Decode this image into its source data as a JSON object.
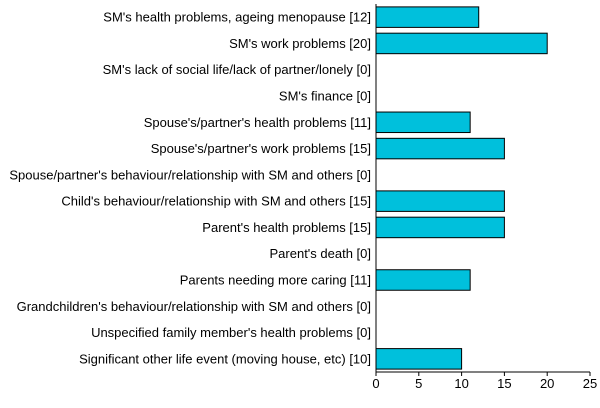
{
  "chart_data": {
    "type": "bar",
    "orientation": "horizontal",
    "title": "",
    "xlabel": "",
    "ylabel": "",
    "xlim": [
      0,
      25
    ],
    "xticks": [
      0,
      5,
      10,
      15,
      20,
      25
    ],
    "grid": false,
    "legend": "none",
    "bar_color": "#00c0dc",
    "categories": [
      "SM's health problems, ageing menopause [12]",
      "SM's work problems [20]",
      "SM's lack of social life/lack of partner/lonely [0]",
      "SM's finance [0]",
      "Spouse's/partner's health problems [11]",
      "Spouse's/partner's work problems [15]",
      "Spouse/partner's behaviour/relationship with SM and others [0]",
      "Child's behaviour/relationship with SM and others [15]",
      "Parent's health problems [15]",
      "Parent's death [0]",
      "Parents needing more caring [11]",
      "Grandchildren's behaviour/relationship with SM and others [0]",
      "Unspecified family member's health problems [0]",
      "Significant other life event (moving house, etc) [10]"
    ],
    "values": [
      12,
      20,
      0,
      0,
      11,
      15,
      0,
      15,
      15,
      0,
      11,
      0,
      0,
      10
    ]
  }
}
